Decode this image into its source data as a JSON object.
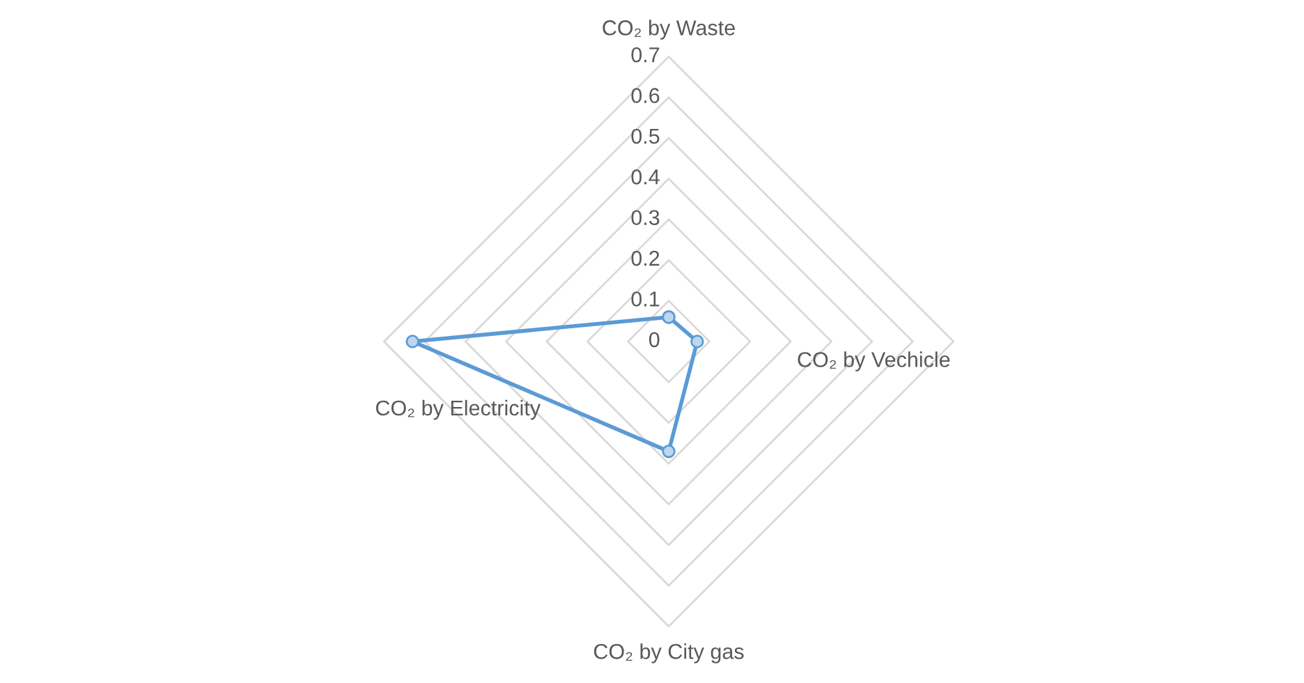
{
  "chart_data": {
    "type": "radar",
    "categories": [
      "CO₂ by Waste",
      "CO₂ by Vechicle",
      "CO₂ by City gas",
      "CO₂ by Electricity"
    ],
    "series": [
      {
        "color": "#5b9bd5",
        "values": [
          0.06,
          0.07,
          0.27,
          0.63
        ]
      }
    ],
    "ylim": [
      0,
      0.7
    ],
    "yticks": [
      0,
      0.1,
      0.2,
      0.3,
      0.4,
      0.5,
      0.6,
      0.7
    ],
    "grid": true,
    "marker": "circle",
    "line_style": "solid"
  }
}
